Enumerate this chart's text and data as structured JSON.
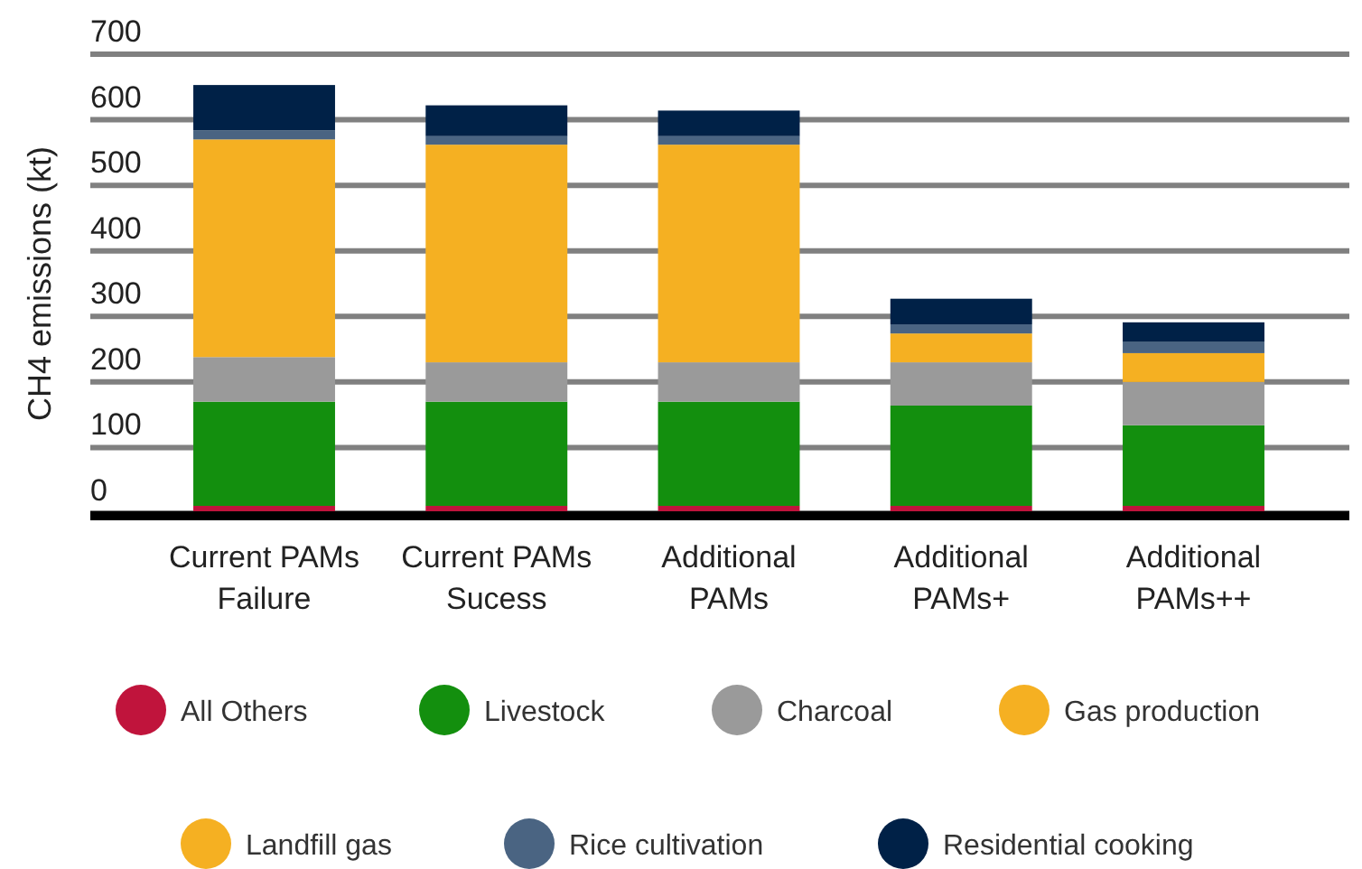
{
  "chart_data": {
    "type": "bar",
    "stacked": true,
    "ylabel": "CH4 emissions (kt)",
    "categories": [
      "Current PAMs\nFailure",
      "Current PAMs\nSucess",
      "Additional\nPAMs",
      "Additional\nPAMs+",
      "Additional\nPAMs++"
    ],
    "series": [
      {
        "name": "All Others",
        "color": "#c0143c",
        "values": [
          11,
          11,
          11,
          11,
          11
        ]
      },
      {
        "name": "Livestock",
        "color": "#138f0e",
        "values": [
          159,
          159,
          159,
          153,
          123
        ]
      },
      {
        "name": "Charcoal",
        "color": "#9a9a9a",
        "values": [
          68,
          60,
          60,
          66,
          66
        ]
      },
      {
        "name": "Gas production",
        "color": "#f5b022",
        "values": [
          332,
          332,
          332,
          44,
          44
        ]
      },
      {
        "name": "Landfill gas",
        "color": "#f5b022",
        "values": [
          null,
          null,
          null,
          null,
          null
        ]
      },
      {
        "name": "Rice cultivation",
        "color": "#4a6482",
        "values": [
          14,
          13,
          13,
          14,
          17
        ]
      },
      {
        "name": "Residential cooking",
        "color": "#002147",
        "values": [
          69,
          47,
          39,
          39,
          30
        ]
      }
    ],
    "ylim": [
      0,
      700
    ],
    "yticks": [
      0,
      100,
      200,
      300,
      400,
      500,
      600,
      700
    ],
    "grid": "y",
    "legend": "bottom"
  }
}
